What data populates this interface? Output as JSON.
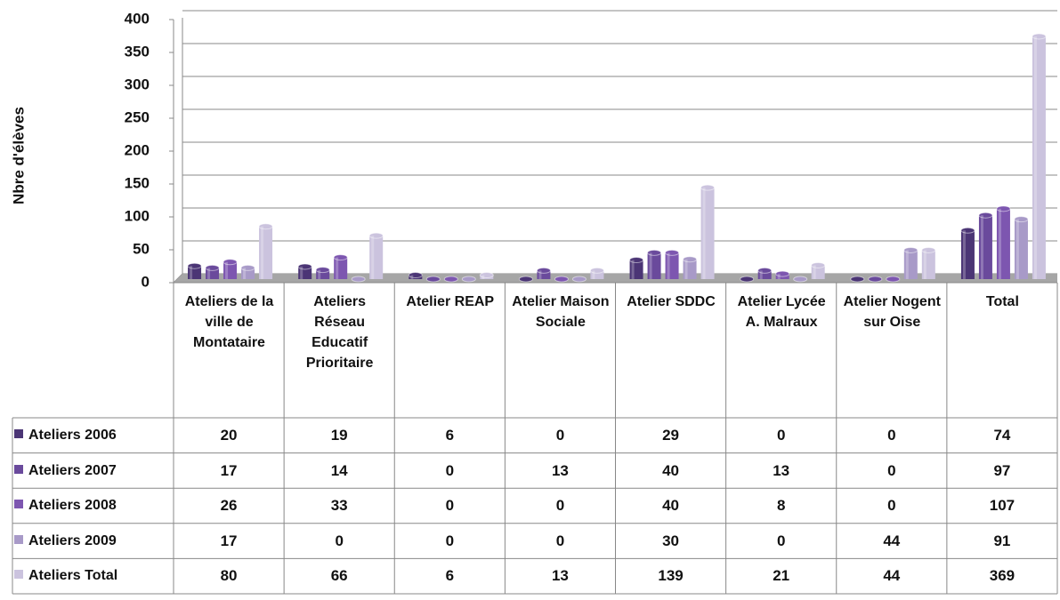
{
  "chart_data": {
    "type": "bar",
    "y_label": "Nbre d'élèves",
    "categories": [
      "Ateliers de la ville de Montataire",
      "Ateliers Réseau Educatif Prioritaire",
      "Atelier REAP",
      "Atelier Maison Sociale",
      "Atelier SDDC",
      "Atelier Lycée A. Malraux",
      "Atelier Nogent sur Oise",
      "Total"
    ],
    "series": [
      {
        "name": "Ateliers 2006",
        "color": "#4b3575",
        "values": [
          20,
          19,
          6,
          0,
          29,
          0,
          0,
          74
        ]
      },
      {
        "name": "Ateliers 2007",
        "color": "#6a4a9c",
        "values": [
          17,
          14,
          0,
          13,
          40,
          13,
          0,
          97
        ]
      },
      {
        "name": "Ateliers 2008",
        "color": "#7d56b0",
        "values": [
          26,
          33,
          0,
          0,
          40,
          8,
          0,
          107
        ]
      },
      {
        "name": "Ateliers 2009",
        "color": "#a89ac8",
        "values": [
          17,
          0,
          0,
          0,
          30,
          0,
          44,
          91
        ]
      },
      {
        "name": "Ateliers Total",
        "color": "#cbc3de",
        "values": [
          80,
          66,
          6,
          13,
          139,
          21,
          44,
          369
        ]
      }
    ],
    "ylim": [
      0,
      400
    ],
    "yticks": [
      0,
      50,
      100,
      150,
      200,
      250,
      300,
      350,
      400
    ],
    "grid": true
  }
}
